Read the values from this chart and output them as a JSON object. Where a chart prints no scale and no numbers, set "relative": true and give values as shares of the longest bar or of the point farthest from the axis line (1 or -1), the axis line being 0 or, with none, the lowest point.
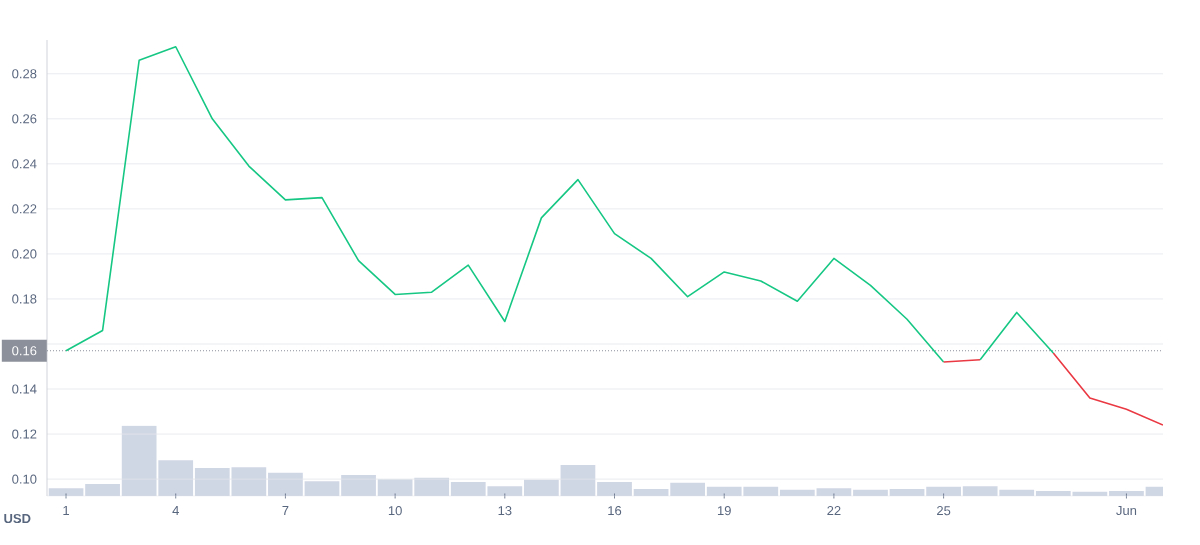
{
  "chart_data": [
    {
      "type": "line",
      "ylabel": "USD",
      "categories": [
        "1",
        null,
        null,
        "4",
        null,
        null,
        "7",
        null,
        null,
        "10",
        null,
        null,
        "13",
        null,
        null,
        "16",
        null,
        null,
        "19",
        null,
        null,
        "22",
        null,
        null,
        "25",
        null,
        null,
        null,
        null,
        "Jun",
        null
      ],
      "series": [
        {
          "color": "#16c784",
          "values": [
            0.157,
            0.166,
            0.286,
            0.292,
            0.26,
            0.239,
            0.224,
            0.225,
            0.197,
            0.182,
            0.183,
            0.195,
            0.17,
            0.216,
            0.233,
            0.209,
            0.198,
            0.181,
            0.192,
            0.188,
            0.179,
            0.198,
            0.186,
            0.171,
            0.152,
            null,
            null,
            null,
            null,
            null,
            null
          ]
        },
        {
          "color": "#ea3943",
          "values": [
            null,
            null,
            null,
            null,
            null,
            null,
            null,
            null,
            null,
            null,
            null,
            null,
            null,
            null,
            null,
            null,
            null,
            null,
            null,
            null,
            null,
            null,
            null,
            null,
            0.152,
            0.153,
            null,
            0.156,
            0.136,
            0.131,
            0.124
          ]
        },
        {
          "color": "#16c784",
          "values": [
            null,
            null,
            null,
            null,
            null,
            null,
            null,
            null,
            null,
            null,
            null,
            null,
            null,
            null,
            null,
            null,
            null,
            null,
            null,
            null,
            null,
            null,
            null,
            null,
            null,
            0.153,
            0.174,
            0.156,
            null,
            null,
            null
          ]
        }
      ],
      "ylim": [
        0.0925,
        0.295
      ],
      "yticks": [
        {
          "value": 0.1,
          "label": "0.10"
        },
        0.12,
        0.14,
        {
          "value": 0.16,
          "label": null
        },
        0.18,
        {
          "value": 0.2,
          "label": "0.20"
        },
        0.22,
        0.24,
        0.26,
        0.28
      ],
      "grid": "y",
      "ref_lines": [
        {
          "axis": "y",
          "value": 0.157,
          "label": "0.16",
          "color": "#8c909a",
          "line_style": "dotted"
        }
      ]
    },
    {
      "type": "bar",
      "relative": true,
      "tick_labels": false,
      "categories": [
        null,
        null,
        null,
        null,
        null,
        null,
        null,
        null,
        null,
        null,
        null,
        null,
        null,
        null,
        null,
        null,
        null,
        null,
        null,
        null,
        null,
        null,
        null,
        null,
        null,
        null,
        null,
        null,
        null,
        null,
        null
      ],
      "color": "#cfd6e4",
      "values": [
        0.11,
        0.17,
        1,
        0.51,
        0.4,
        0.41,
        0.33,
        0.21,
        0.3,
        0.24,
        0.26,
        0.2,
        0.14,
        0.23,
        0.44,
        0.2,
        0.1,
        0.19,
        0.13,
        0.13,
        0.09,
        0.11,
        0.09,
        0.1,
        0.13,
        0.14,
        0.09,
        0.07,
        0.06,
        0.07,
        0.13
      ]
    }
  ]
}
